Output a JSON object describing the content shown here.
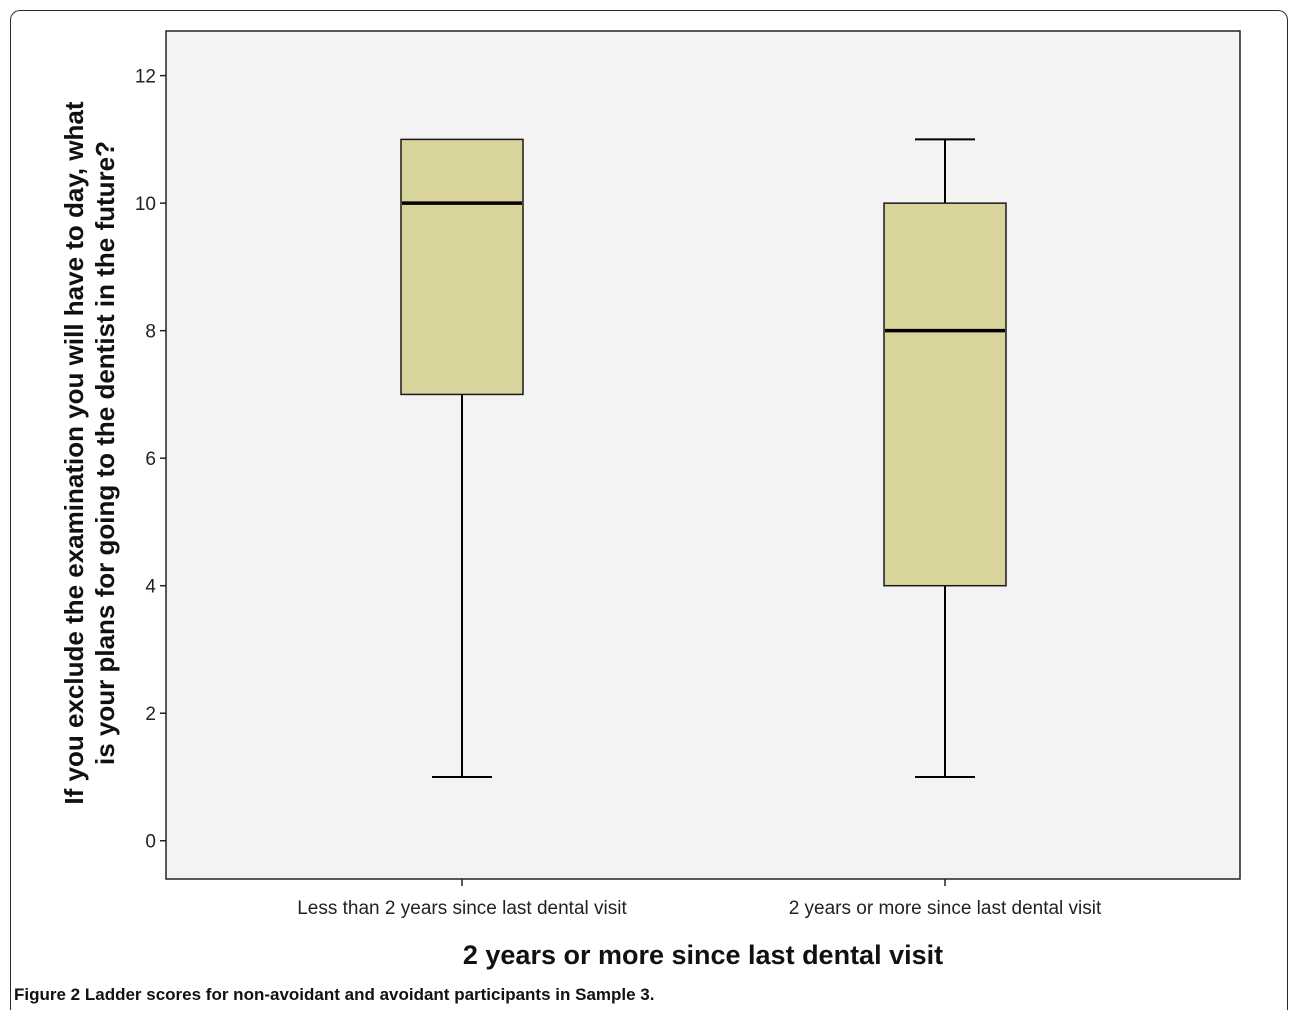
{
  "chart_data": {
    "type": "boxplot",
    "title": "",
    "xlabel": "2 years or more since last dental visit",
    "ylabel_lines": [
      "If you exclude the examination you will have to day, what",
      "is your plans for going to the dentist in the future?"
    ],
    "ylim": [
      -0.6,
      12.7
    ],
    "yticks": [
      0,
      2,
      4,
      6,
      8,
      10,
      12
    ],
    "grid": false,
    "categories": [
      "Less than 2 years since last dental visit",
      "2 years or more since last dental visit"
    ],
    "boxes": [
      {
        "min": 1,
        "q1": 7,
        "median": 10,
        "q3": 11,
        "max": 11
      },
      {
        "min": 1,
        "q1": 4,
        "median": 8,
        "q3": 10,
        "max": 11
      }
    ],
    "colors": {
      "box_fill": "#d9d49c",
      "plot_bg": "#f3f3f3",
      "line": "#000000"
    }
  },
  "caption": {
    "figure_label": "Figure 2",
    "text": "Ladder scores for non-avoidant and avoidant participants in Sample 3."
  }
}
